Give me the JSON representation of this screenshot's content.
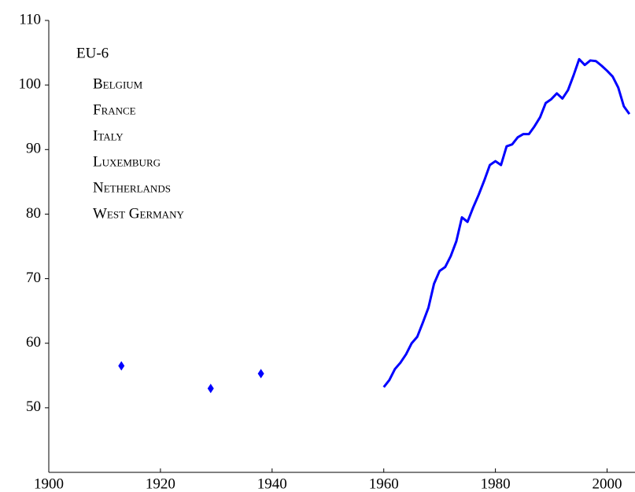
{
  "chart_data": {
    "type": "line",
    "annotation": {
      "title": "EU-6",
      "items": [
        "Belgium",
        "France",
        "Italy",
        "Luxemburg",
        "Netherlands",
        "West Germany"
      ]
    },
    "xlim": [
      1900,
      2005
    ],
    "xticks": [
      1900,
      1920,
      1940,
      1960,
      1980,
      2000
    ],
    "ylim": [
      40,
      110
    ],
    "yticks": [
      50,
      60,
      70,
      80,
      90,
      100,
      110
    ],
    "grid": false,
    "series": [
      {
        "type": "scatter",
        "color": "#0000ff",
        "x": [
          1913,
          1929,
          1938
        ],
        "values": [
          56.5,
          53,
          55.3
        ]
      },
      {
        "type": "line",
        "color": "#0000ff",
        "x": [
          1960,
          1961,
          1962,
          1963,
          1964,
          1965,
          1966,
          1967,
          1968,
          1969,
          1970,
          1971,
          1972,
          1973,
          1974,
          1975,
          1976,
          1977,
          1978,
          1979,
          1980,
          1981,
          1982,
          1983,
          1984,
          1985,
          1986,
          1987,
          1988,
          1989,
          1990,
          1991,
          1992,
          1993,
          1994,
          1995,
          1996,
          1997,
          1998,
          1999,
          2000,
          2001,
          2002,
          2003,
          2004
        ],
        "values": [
          53.2,
          54.3,
          56,
          57,
          58.3,
          60,
          61,
          63.2,
          65.5,
          69.2,
          71.2,
          71.8,
          73.5,
          75.8,
          79.5,
          78.8,
          81,
          83,
          85.2,
          87.6,
          88.2,
          87.6,
          90.5,
          90.8,
          91.9,
          92.4,
          92.4,
          93.6,
          95,
          97.2,
          97.8,
          98.7,
          97.9,
          99.2,
          101.5,
          104,
          103.1,
          103.8,
          103.7,
          103,
          102.2,
          101.3,
          99.6,
          96.7,
          95.5
        ]
      }
    ]
  }
}
